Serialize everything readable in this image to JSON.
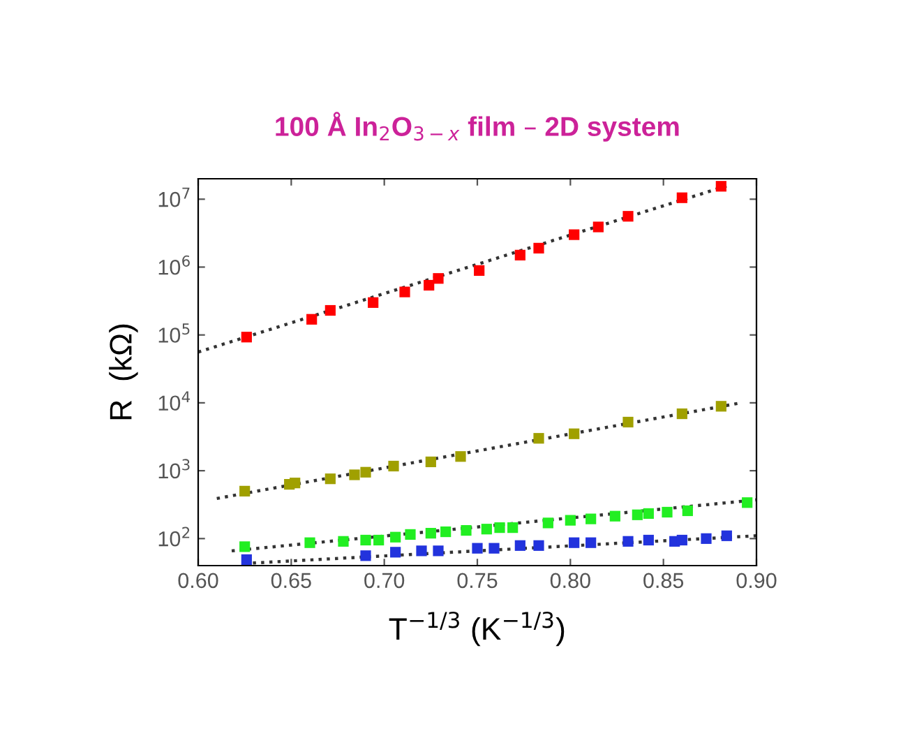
{
  "chart_data": {
    "type": "scatter",
    "title": "100 Å In$_{2}$O$_{3−x}$ film – 2D system",
    "xlabel": "T$^{−1/3}$ (K$^{−1/3}$)",
    "ylabel": "R  (kΩ)",
    "log": "y",
    "grid": false,
    "legend": false,
    "xlim": [
      0.6,
      0.9
    ],
    "xticks": [
      {
        "value": 0.6,
        "label": "0.60"
      },
      {
        "value": 0.65,
        "label": "0.65"
      },
      {
        "value": 0.7,
        "label": "0.70"
      },
      {
        "value": 0.75,
        "label": "0.75"
      },
      {
        "value": 0.8,
        "label": "0.80"
      },
      {
        "value": 0.85,
        "label": "0.85"
      },
      {
        "value": 0.9,
        "label": "0.90"
      }
    ],
    "ylim": [
      40,
      20000000
    ],
    "yticks": [
      {
        "value": 100,
        "label": "10$^{2}$"
      },
      {
        "value": 1000,
        "label": "10$^{3}$"
      },
      {
        "value": 10000,
        "label": "10$^{4}$"
      },
      {
        "value": 100000,
        "label": "10$^{5}$"
      },
      {
        "value": 1000000,
        "label": "10$^{6}$"
      },
      {
        "value": 10000000,
        "label": "10$^{7}$"
      }
    ],
    "series": [
      {
        "marker": "square",
        "color": "#ff0000",
        "x": [
          0.626,
          0.661,
          0.671,
          0.694,
          0.711,
          0.724,
          0.729,
          0.751,
          0.773,
          0.783,
          0.802,
          0.815,
          0.831,
          0.86,
          0.881
        ],
        "values": [
          93000,
          170000,
          230000,
          300000,
          430000,
          540000,
          680000,
          890000,
          1500000,
          1900000,
          3000000,
          3900000,
          5600000,
          10500000,
          15500000
        ]
      },
      {
        "marker": "square",
        "color": "#a0a000",
        "x": [
          0.625,
          0.649,
          0.652,
          0.671,
          0.684,
          0.69,
          0.705,
          0.725,
          0.741,
          0.783,
          0.802,
          0.831,
          0.86,
          0.881
        ],
        "values": [
          500,
          630,
          660,
          760,
          870,
          950,
          1170,
          1350,
          1620,
          3000,
          3500,
          5200,
          6900,
          8900
        ]
      },
      {
        "marker": "square",
        "color": "#22ee22",
        "x": [
          0.625,
          0.66,
          0.678,
          0.69,
          0.697,
          0.706,
          0.714,
          0.725,
          0.733,
          0.744,
          0.755,
          0.762,
          0.769,
          0.788,
          0.8,
          0.811,
          0.824,
          0.836,
          0.842,
          0.852,
          0.863,
          0.895
        ],
        "values": [
          76,
          87,
          91,
          95,
          95,
          105,
          115,
          120,
          126,
          132,
          138,
          145,
          145,
          170,
          186,
          195,
          214,
          224,
          234,
          245,
          257,
          339
        ]
      },
      {
        "marker": "square",
        "color": "#2233dd",
        "x": [
          0.626,
          0.69,
          0.706,
          0.72,
          0.729,
          0.75,
          0.759,
          0.773,
          0.783,
          0.802,
          0.811,
          0.831,
          0.842,
          0.856,
          0.86,
          0.873,
          0.884
        ],
        "values": [
          49,
          56,
          63,
          66,
          66,
          72,
          72,
          79,
          79,
          87,
          87,
          91,
          95,
          91,
          95,
          100,
          110
        ]
      },
      {
        "type": "line",
        "marker": "none",
        "line_style": "dotted",
        "color": "#333333",
        "x": [
          0.6,
          0.885
        ],
        "values": [
          56000,
          16000000
        ]
      },
      {
        "type": "line",
        "marker": "none",
        "line_style": "dotted",
        "color": "#333333",
        "x": [
          0.61,
          0.89
        ],
        "values": [
          390,
          9800
        ]
      },
      {
        "type": "line",
        "marker": "none",
        "line_style": "dotted",
        "color": "#333333",
        "x": [
          0.618,
          0.9
        ],
        "values": [
          66,
          372
        ]
      },
      {
        "type": "line",
        "marker": "none",
        "line_style": "dotted",
        "color": "#333333",
        "x": [
          0.625,
          0.9
        ],
        "values": [
          43,
          110
        ]
      }
    ]
  }
}
